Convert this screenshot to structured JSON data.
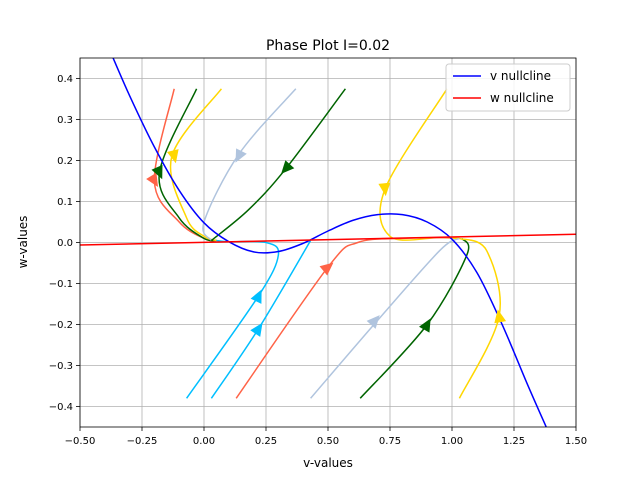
{
  "chart_data": {
    "type": "line",
    "title": "Phase Plot I=0.02",
    "xlabel": "v-values",
    "ylabel": "w-values",
    "xlim": [
      -0.5,
      1.5
    ],
    "ylim": [
      -0.45,
      0.45
    ],
    "xticks": [
      -0.5,
      -0.25,
      0.0,
      0.25,
      0.5,
      0.75,
      1.0,
      1.25,
      1.5
    ],
    "xtick_labels": [
      "−0.50",
      "−0.25",
      "0.00",
      "0.25",
      "0.50",
      "0.75",
      "1.00",
      "1.25",
      "1.50"
    ],
    "yticks": [
      -0.4,
      -0.3,
      -0.2,
      -0.1,
      0.0,
      0.1,
      0.2,
      0.3,
      0.4
    ],
    "ytick_labels": [
      "−0.4",
      "−0.3",
      "−0.2",
      "−0.1",
      "0.0",
      "0.1",
      "0.2",
      "0.3",
      "0.4"
    ],
    "grid": true,
    "legend_position": "top-right",
    "series": [
      {
        "name": "v nullcline",
        "color": "#0000ff",
        "x": [
          -0.37,
          -0.3,
          -0.2,
          -0.1,
          0.0,
          0.1,
          0.2,
          0.3,
          0.4,
          0.5,
          0.6,
          0.7,
          0.8,
          0.9,
          1.0,
          1.1,
          1.2,
          1.3,
          1.38
        ],
        "y": [
          0.455,
          0.358,
          0.233,
          0.127,
          0.048,
          0.002,
          -0.023,
          -0.022,
          -0.002,
          0.028,
          0.054,
          0.068,
          0.068,
          0.05,
          0.008,
          -0.073,
          -0.197,
          -0.34,
          -0.45
        ]
      },
      {
        "name": "w nullcline",
        "color": "#ff0000",
        "x": [
          -0.5,
          1.5
        ],
        "y": [
          -0.006,
          0.02
        ]
      }
    ],
    "trajectories": [
      {
        "color": "#ff6347",
        "points": [
          [
            -0.12,
            0.375
          ],
          [
            -0.2,
            0.15
          ],
          [
            -0.1,
            0.05
          ],
          [
            0.0,
            0.01
          ],
          [
            0.05,
            0.005
          ]
        ],
        "arrow": [
          -0.2,
          0.15
        ]
      },
      {
        "color": "#006400",
        "points": [
          [
            -0.03,
            0.375
          ],
          [
            -0.18,
            0.17
          ],
          [
            -0.1,
            0.06
          ],
          [
            0.0,
            0.01
          ],
          [
            0.05,
            0.005
          ]
        ],
        "arrow": [
          -0.18,
          0.17
        ]
      },
      {
        "color": "#ffd700",
        "points": [
          [
            0.07,
            0.375
          ],
          [
            -0.13,
            0.21
          ],
          [
            -0.07,
            0.06
          ],
          [
            0.0,
            0.015
          ],
          [
            0.05,
            0.005
          ]
        ],
        "arrow": [
          -0.12,
          0.21
        ]
      },
      {
        "color": "#b0c4de",
        "points": [
          [
            0.37,
            0.375
          ],
          [
            0.14,
            0.215
          ],
          [
            0.0,
            0.05
          ],
          [
            0.03,
            0.005
          ]
        ],
        "arrow": [
          0.14,
          0.21
        ]
      },
      {
        "color": "#006400",
        "points": [
          [
            0.57,
            0.375
          ],
          [
            0.33,
            0.18
          ],
          [
            0.18,
            0.08
          ],
          [
            0.03,
            0.005
          ]
        ],
        "arrow": [
          0.33,
          0.18
        ]
      },
      {
        "color": "#ffd700",
        "points": [
          [
            0.98,
            0.375
          ],
          [
            0.73,
            0.13
          ],
          [
            0.75,
            0.015
          ],
          [
            0.95,
            0.012
          ],
          [
            1.03,
            0.01
          ]
        ],
        "arrow": [
          0.73,
          0.13
        ]
      },
      {
        "color": "#00bfff",
        "points": [
          [
            -0.07,
            -0.38
          ],
          [
            0.22,
            -0.13
          ],
          [
            0.3,
            -0.03
          ],
          [
            0.25,
            0.0
          ],
          [
            0.1,
            0.002
          ],
          [
            0.05,
            0.005
          ]
        ],
        "arrow": [
          0.22,
          -0.13
        ]
      },
      {
        "color": "#00bfff",
        "points": [
          [
            0.03,
            -0.38
          ],
          [
            0.22,
            -0.21
          ],
          [
            0.43,
            0.005
          ]
        ],
        "arrow": [
          0.22,
          -0.21
        ]
      },
      {
        "color": "#ff6347",
        "points": [
          [
            0.13,
            -0.38
          ],
          [
            0.5,
            -0.06
          ],
          [
            0.62,
            0.0
          ],
          [
            0.8,
            0.01
          ],
          [
            1.0,
            0.012
          ]
        ],
        "arrow": [
          0.5,
          -0.06
        ]
      },
      {
        "color": "#b0c4de",
        "points": [
          [
            0.43,
            -0.38
          ],
          [
            0.7,
            -0.19
          ],
          [
            0.95,
            -0.02
          ],
          [
            1.03,
            0.01
          ]
        ],
        "arrow": [
          0.69,
          -0.19
        ]
      },
      {
        "color": "#006400",
        "points": [
          [
            0.63,
            -0.38
          ],
          [
            0.9,
            -0.2
          ],
          [
            1.06,
            -0.03
          ],
          [
            1.04,
            0.01
          ]
        ],
        "arrow": [
          0.9,
          -0.2
        ]
      },
      {
        "color": "#ffd700",
        "points": [
          [
            1.03,
            -0.38
          ],
          [
            1.19,
            -0.18
          ],
          [
            1.14,
            -0.02
          ],
          [
            1.03,
            0.01
          ]
        ],
        "arrow": [
          1.19,
          -0.18
        ]
      }
    ]
  }
}
